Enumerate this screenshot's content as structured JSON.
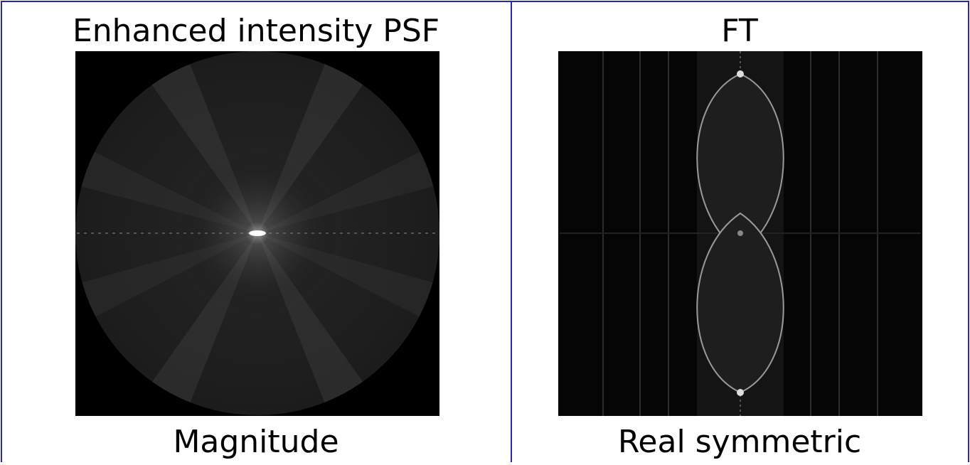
{
  "panels": [
    {
      "title": "Enhanced intensity PSF",
      "caption": "Magnitude"
    },
    {
      "title": "FT",
      "caption": "Real symmetric"
    }
  ]
}
